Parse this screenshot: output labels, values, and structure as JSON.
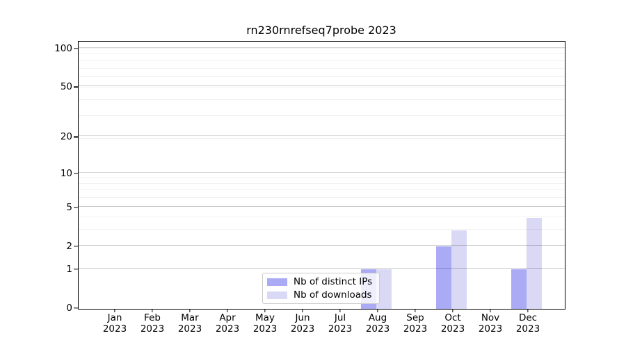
{
  "chart_data": {
    "type": "bar",
    "title": "rn230rnrefseq7probe 2023",
    "categories": [
      "Jan 2023",
      "Feb 2023",
      "Mar 2023",
      "Apr 2023",
      "May 2023",
      "Jun 2023",
      "Jul 2023",
      "Aug 2023",
      "Sep 2023",
      "Oct 2023",
      "Nov 2023",
      "Dec 2023"
    ],
    "series": [
      {
        "name": "Nb of distinct IPs",
        "color": "#aaaaf5",
        "values": [
          0,
          0,
          0,
          0,
          0,
          0,
          0,
          1,
          0,
          2,
          0,
          1
        ]
      },
      {
        "name": "Nb of downloads",
        "color": "#d9d9f6",
        "values": [
          0,
          0,
          0,
          0,
          0,
          0,
          0,
          1,
          0,
          3,
          0,
          4
        ]
      }
    ],
    "xlabel": "",
    "ylabel": "",
    "yscale": "log10(1+x)",
    "yticks": [
      0,
      1,
      2,
      5,
      10,
      20,
      50,
      100
    ],
    "ylim": [
      0,
      113
    ],
    "grid": true,
    "legend_position": "lower center"
  },
  "colors": {
    "background": "#ffffff",
    "spine": "#000000",
    "text": "#000000",
    "grid_major": "rgba(0,0,0,0.16)",
    "grid_minor": "rgba(0,0,0,0.055)",
    "legend_border": "#cccccc",
    "legend_background": "rgba(255,255,255,0.8)"
  }
}
